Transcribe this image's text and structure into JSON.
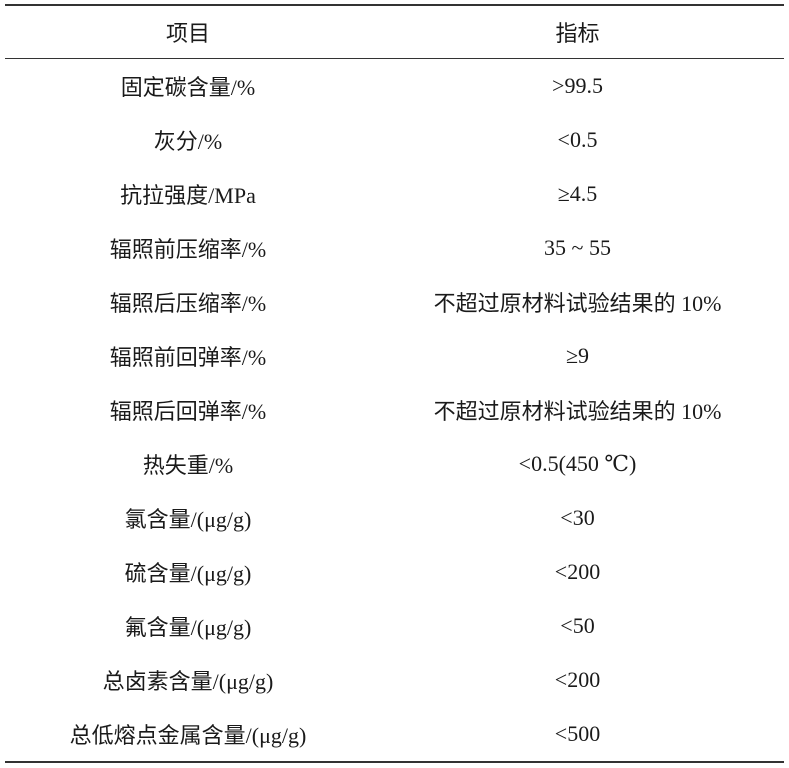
{
  "table": {
    "header": [
      "项目",
      "指标"
    ],
    "rows": [
      [
        "固定碳含量/%",
        ">99.5"
      ],
      [
        "灰分/%",
        "<0.5"
      ],
      [
        "抗拉强度/MPa",
        "≥4.5"
      ],
      [
        "辐照前压缩率/%",
        "35 ~ 55"
      ],
      [
        "辐照后压缩率/%",
        "不超过原材料试验结果的 10%"
      ],
      [
        "辐照前回弹率/%",
        "≥9"
      ],
      [
        "辐照后回弹率/%",
        "不超过原材料试验结果的 10%"
      ],
      [
        "热失重/%",
        "<0.5(450 ℃)"
      ],
      [
        "氯含量/(μg/g)",
        "<30"
      ],
      [
        "硫含量/(μg/g)",
        "<200"
      ],
      [
        "氟含量/(μg/g)",
        "<50"
      ],
      [
        "总卤素含量/(μg/g)",
        "<200"
      ],
      [
        "总低熔点金属含量/(μg/g)",
        "<500"
      ]
    ]
  }
}
